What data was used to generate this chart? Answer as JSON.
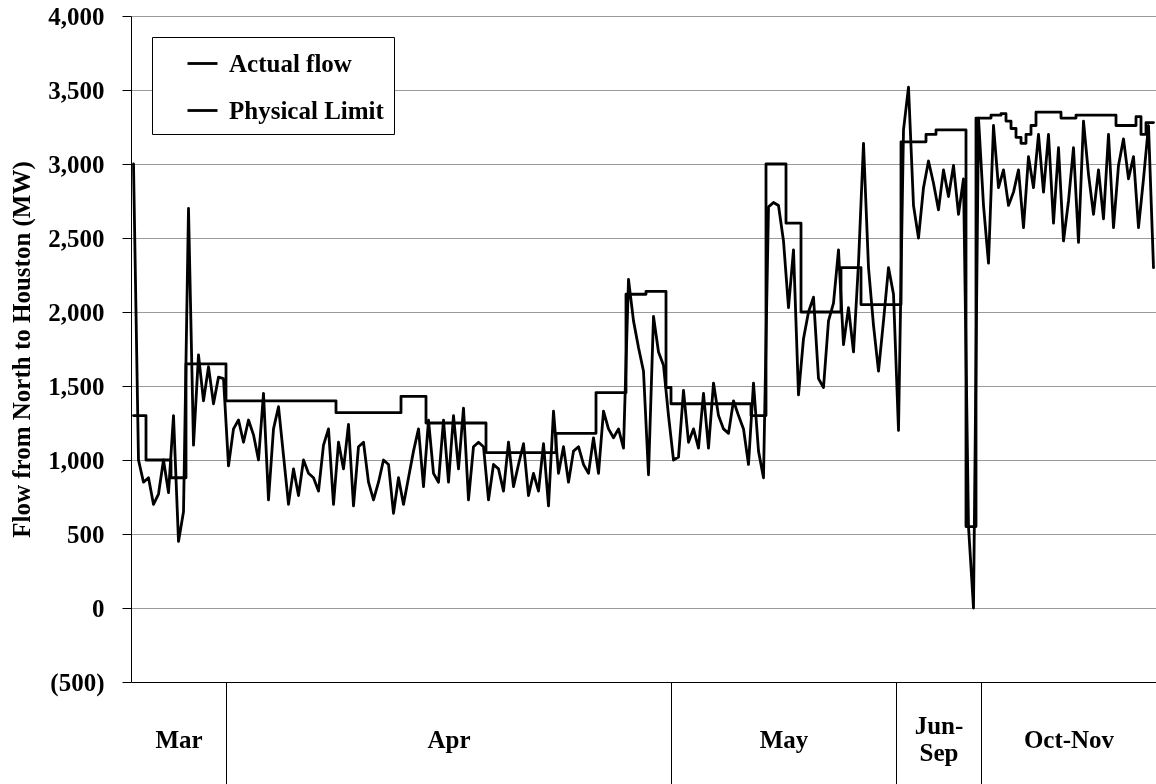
{
  "chart_data": {
    "type": "line",
    "ylabel": "Flow from North to Houston (MW)",
    "categories": [
      null,
      null,
      null,
      null,
      null,
      null,
      null,
      null,
      null,
      "Mar",
      null,
      null,
      null,
      null,
      null,
      null,
      null,
      null,
      null,
      null,
      null,
      null,
      null,
      null,
      null,
      null,
      null,
      null,
      null,
      null,
      null,
      null,
      null,
      null,
      null,
      null,
      null,
      null,
      null,
      null,
      null,
      null,
      null,
      null,
      null,
      null,
      null,
      null,
      null,
      null,
      null,
      null,
      null,
      null,
      null,
      null,
      null,
      null,
      null,
      null,
      null,
      null,
      null,
      "Apr",
      null,
      null,
      null,
      null,
      null,
      null,
      null,
      null,
      null,
      null,
      null,
      null,
      null,
      null,
      null,
      null,
      null,
      null,
      null,
      null,
      null,
      null,
      null,
      null,
      null,
      null,
      null,
      null,
      null,
      null,
      null,
      null,
      null,
      null,
      null,
      null,
      null,
      null,
      null,
      null,
      null,
      null,
      null,
      null,
      null,
      null,
      null,
      null,
      null,
      null,
      null,
      null,
      null,
      null,
      null,
      null,
      null,
      null,
      null,
      null,
      null,
      null,
      null,
      null,
      null,
      null,
      "May",
      null,
      null,
      null,
      null,
      null,
      null,
      null,
      null,
      null,
      null,
      null,
      null,
      null,
      null,
      null,
      null,
      null,
      null,
      null,
      null,
      null,
      null,
      null,
      null,
      null,
      null,
      null,
      null,
      null,
      null,
      "Jun-Sep",
      null,
      null,
      null,
      null,
      null,
      null,
      null,
      null,
      null,
      null,
      null,
      null,
      null,
      null,
      null,
      null,
      null,
      null,
      null,
      null,
      null,
      null,
      null,
      null,
      null,
      "Oct-Nov",
      null,
      null,
      null,
      null,
      null,
      null,
      null,
      null,
      null,
      null,
      null,
      null,
      null,
      null,
      null,
      null,
      null
    ],
    "ylim": [
      -500,
      4000
    ],
    "yticks": [
      {
        "value": -500,
        "label": "(500)"
      },
      0,
      500,
      {
        "value": 1000,
        "label": "1,000"
      },
      {
        "value": 1500,
        "label": "1,500"
      },
      {
        "value": 2000,
        "label": "2,000"
      },
      {
        "value": 2500,
        "label": "2,500"
      },
      {
        "value": 3000,
        "label": "3,000"
      },
      {
        "value": 3500,
        "label": "3,500"
      },
      {
        "value": 4000,
        "label": "4,000"
      }
    ],
    "grid": "y",
    "legend": "top left",
    "series": [
      {
        "name": "Actual flow",
        "color": "#000000",
        "values": [
          3000,
          1000,
          850,
          880,
          700,
          770,
          1000,
          780,
          1300,
          450,
          650,
          2700,
          1100,
          1710,
          1400,
          1630,
          1380,
          1560,
          1550,
          960,
          1210,
          1270,
          1120,
          1270,
          1170,
          1000,
          1450,
          730,
          1210,
          1360,
          1030,
          700,
          940,
          760,
          1000,
          910,
          880,
          790,
          1100,
          1210,
          700,
          1120,
          940,
          1240,
          690,
          1090,
          1120,
          850,
          730,
          850,
          1000,
          970,
          640,
          880,
          700,
          880,
          1060,
          1210,
          820,
          1270,
          910,
          850,
          1270,
          850,
          1300,
          940,
          1350,
          730,
          1090,
          1120,
          1090,
          730,
          970,
          940,
          790,
          1120,
          820,
          970,
          1110,
          760,
          910,
          790,
          1110,
          690,
          1330,
          910,
          1090,
          850,
          1060,
          1090,
          970,
          910,
          1150,
          910,
          1330,
          1210,
          1150,
          1210,
          1080,
          2220,
          1940,
          1760,
          1600,
          900,
          1970,
          1730,
          1640,
          1300,
          1000,
          1020,
          1470,
          1120,
          1210,
          1080,
          1450,
          1080,
          1520,
          1300,
          1210,
          1180,
          1400,
          1300,
          1210,
          970,
          1520,
          1060,
          880,
          2710,
          2740,
          2720,
          2480,
          2030,
          2420,
          1440,
          1820,
          2000,
          2100,
          1550,
          1490,
          1940,
          2060,
          2420,
          1780,
          2030,
          1730,
          2330,
          3140,
          2300,
          1910,
          1600,
          1940,
          2300,
          2120,
          1200,
          3230,
          3520,
          2720,
          2500,
          2840,
          3020,
          2870,
          2690,
          2960,
          2780,
          2990,
          2660,
          2900,
          550,
          0,
          3310,
          2720,
          2330,
          3260,
          2840,
          2960,
          2720,
          2810,
          2960,
          2570,
          3050,
          2840,
          3200,
          2810,
          3200,
          2600,
          3110,
          2480,
          2750,
          3110,
          2470,
          3290,
          2930,
          2660,
          2960,
          2630,
          3200,
          2570,
          2990,
          3170,
          2900,
          3050,
          2570,
          2900,
          3260,
          2300
        ]
      },
      {
        "name": "Physical Limit",
        "color": "#000000",
        "type": "step",
        "values": [
          1300,
          1300,
          1300,
          1000,
          1000,
          1000,
          1000,
          1000,
          880,
          880,
          880,
          1650,
          1650,
          1650,
          1650,
          1650,
          1650,
          1650,
          1650,
          1400,
          1400,
          1400,
          1400,
          1400,
          1400,
          1400,
          1400,
          1400,
          1400,
          1400,
          1400,
          1400,
          1400,
          1400,
          1400,
          1400,
          1400,
          1400,
          1400,
          1400,
          1400,
          1320,
          1320,
          1320,
          1320,
          1320,
          1320,
          1320,
          1320,
          1320,
          1320,
          1320,
          1320,
          1320,
          1430,
          1430,
          1430,
          1430,
          1430,
          1250,
          1250,
          1250,
          1250,
          1250,
          1250,
          1250,
          1250,
          1250,
          1250,
          1250,
          1250,
          1050,
          1050,
          1050,
          1050,
          1050,
          1050,
          1050,
          1050,
          1050,
          1050,
          1050,
          1050,
          1050,
          1050,
          1180,
          1180,
          1180,
          1180,
          1180,
          1180,
          1180,
          1180,
          1455,
          1455,
          1455,
          1455,
          1455,
          1455,
          2120,
          2120,
          2120,
          2120,
          2140,
          2140,
          2140,
          2140,
          1490,
          1380,
          1380,
          1380,
          1380,
          1380,
          1380,
          1380,
          1380,
          1380,
          1380,
          1380,
          1380,
          1380,
          1380,
          1380,
          1380,
          1300,
          1300,
          1300,
          3000,
          3000,
          3000,
          3000,
          2600,
          2600,
          2600,
          2000,
          2000,
          2000,
          2000,
          2000,
          2000,
          2000,
          2000,
          2300,
          2300,
          2300,
          2300,
          2050,
          2050,
          2050,
          2050,
          2050,
          2050,
          2050,
          2050,
          3150,
          3150,
          3150,
          3150,
          3150,
          3200,
          3200,
          3230,
          3230,
          3230,
          3230,
          3230,
          3230,
          550,
          550,
          3310,
          3310,
          3310,
          3330,
          3330,
          3340,
          3290,
          3240,
          3180,
          3140,
          3200,
          3260,
          3350,
          3350,
          3350,
          3350,
          3350,
          3310,
          3310,
          3310,
          3330,
          3330,
          3330,
          3330,
          3330,
          3330,
          3330,
          3330,
          3260,
          3260,
          3260,
          3260,
          3320,
          3200,
          3280,
          3280
        ]
      }
    ]
  }
}
